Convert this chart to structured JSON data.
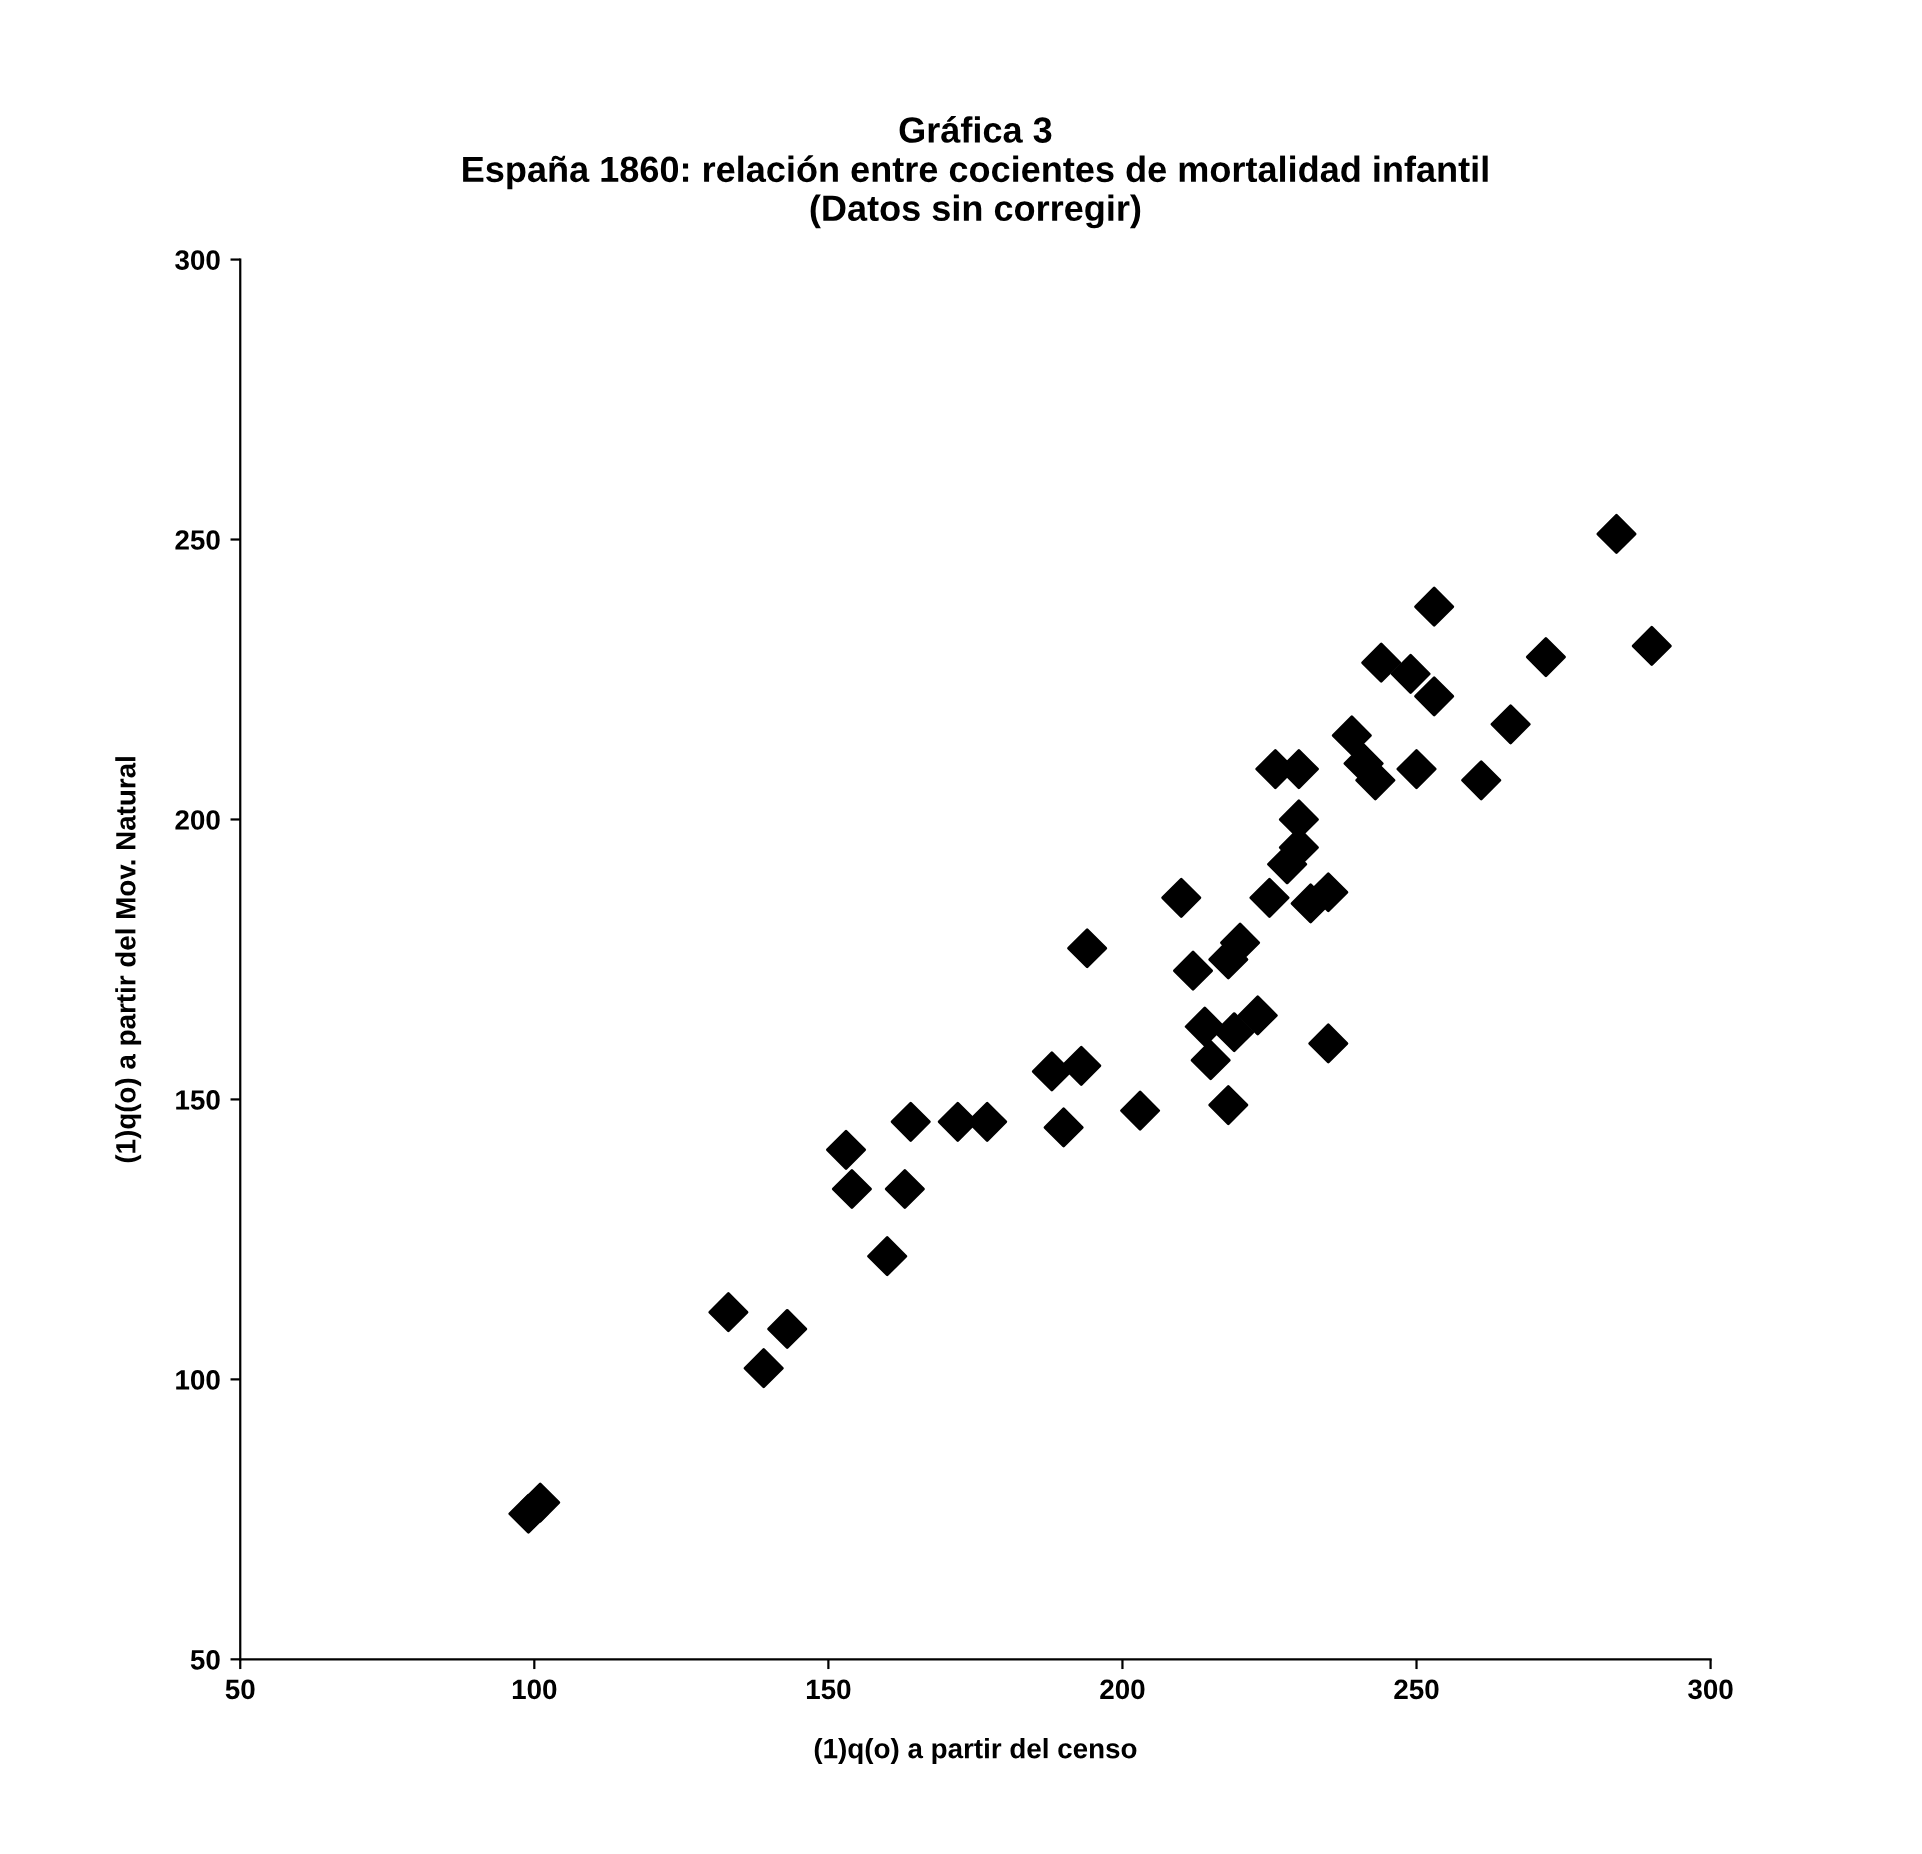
{
  "chart_data": {
    "type": "scatter",
    "title": "Gráfica 3\nEspaña 1860: relación entre cocientes de mortalidad infantil\n(Datos sin corregir)",
    "xlabel": "(1)q(o) a partir del censo",
    "ylabel": "(1)q(o) a partir del Mov. Natural",
    "series": [
      {
        "color": "#000000",
        "x": [
          284,
          253,
          290,
          272,
          244,
          249,
          253,
          266,
          239,
          241,
          243,
          250,
          261,
          226,
          230,
          230,
          230,
          228,
          225,
          232,
          235,
          210,
          194,
          220,
          218,
          212,
          214,
          219,
          223,
          235,
          215,
          188,
          193,
          218,
          203,
          190,
          164,
          172,
          177,
          153,
          154,
          163,
          160,
          133,
          143,
          139,
          99,
          101
        ],
        "values": [
          251,
          238,
          231,
          229,
          228,
          226,
          222,
          217,
          215,
          210,
          207,
          209,
          207,
          209,
          209,
          200,
          195,
          192,
          186,
          185,
          187,
          186,
          177,
          178,
          175,
          173,
          163,
          162,
          165,
          160,
          157,
          155,
          156,
          149,
          148,
          145,
          146,
          146,
          146,
          141,
          134,
          134,
          122,
          112,
          109,
          102,
          76,
          78
        ]
      }
    ],
    "xlim": [
      50,
      300
    ],
    "ylim": [
      50,
      300
    ],
    "xticks": [
      50,
      100,
      150,
      200,
      250,
      300
    ],
    "yticks": [
      50,
      100,
      150,
      200,
      250,
      300
    ],
    "marker": "diamond",
    "grid": false,
    "legend": false
  }
}
